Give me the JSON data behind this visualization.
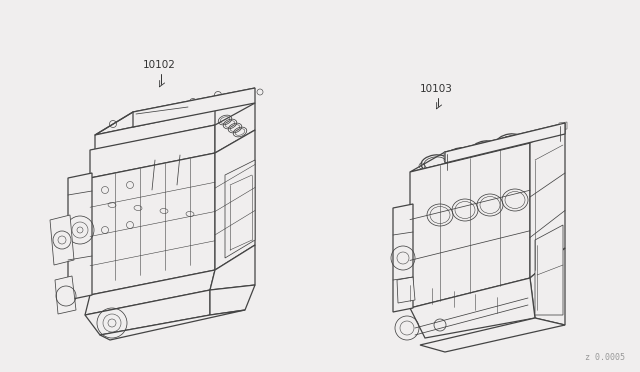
{
  "background_color": "#ffffff",
  "line_color": "#444444",
  "label_color": "#333333",
  "label_1": "10102",
  "label_2": "10103",
  "watermark": "z 0.0005",
  "fig_width": 6.4,
  "fig_height": 3.72,
  "dpi": 100,
  "bg_fill": "#f0eeee"
}
